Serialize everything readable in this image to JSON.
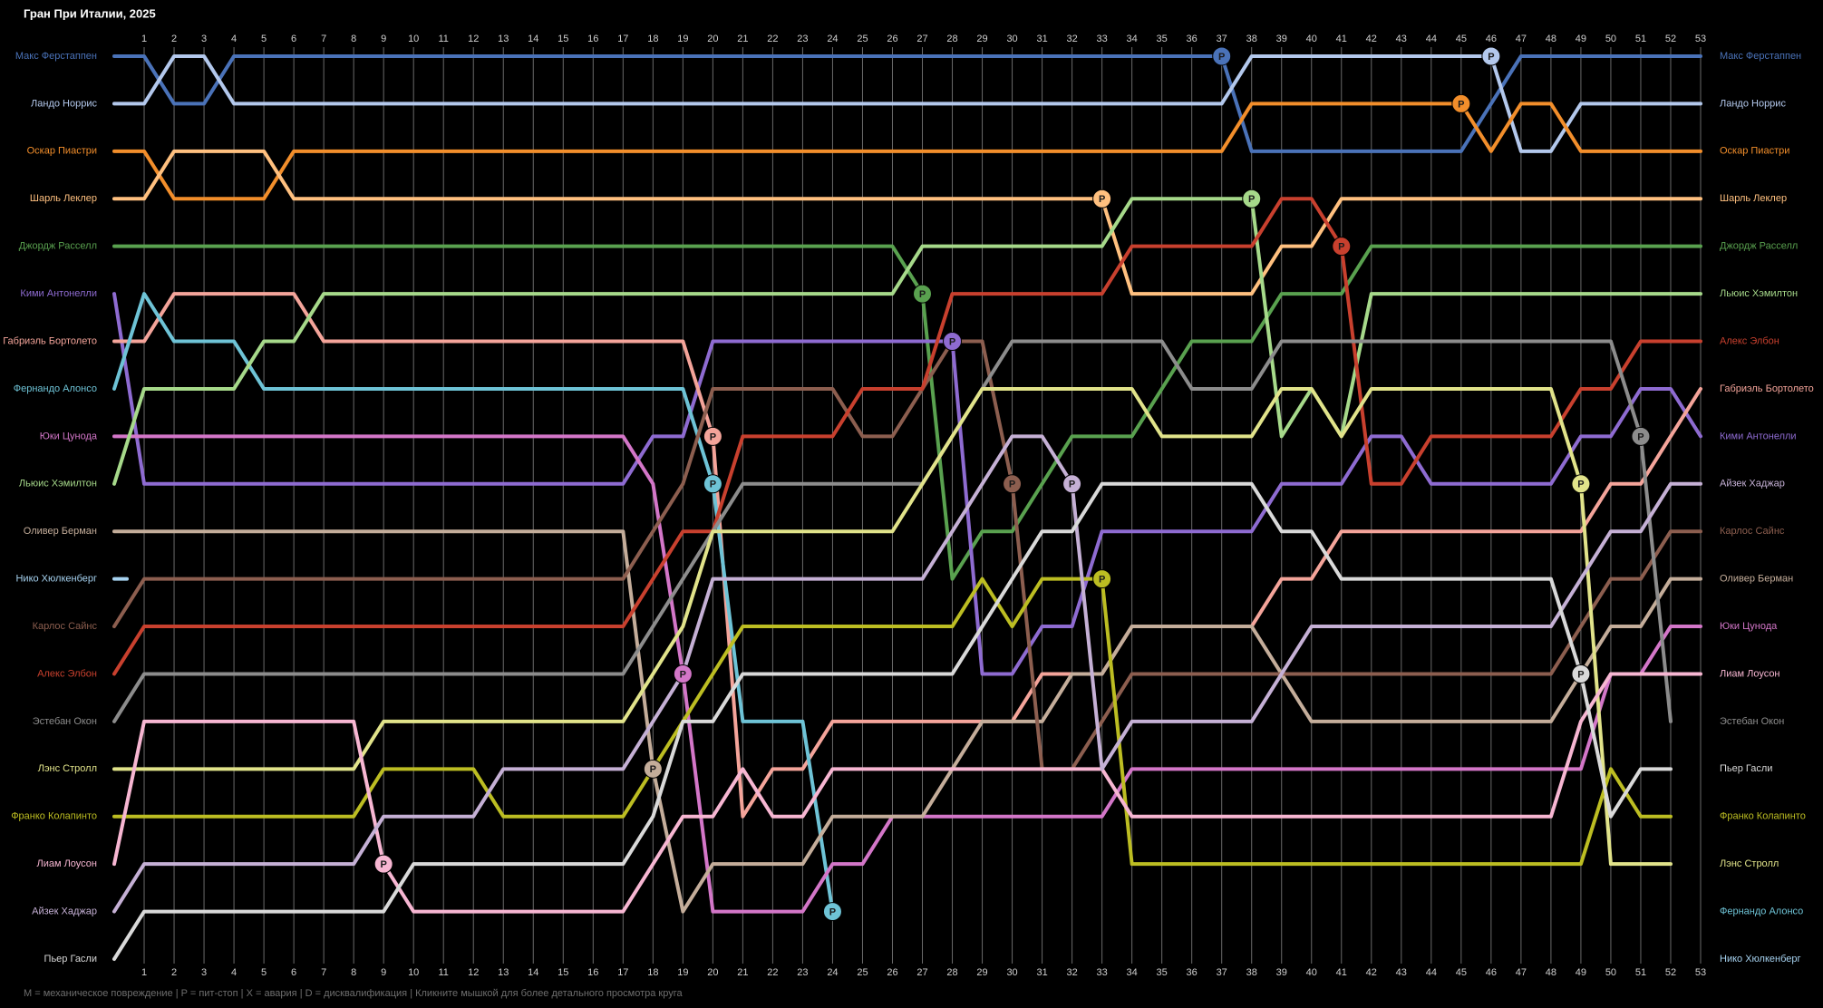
{
  "chart_data": {
    "type": "position-line",
    "title": "Гран При Италии, 2025",
    "footnote": "M = механическое повреждение | P = пит-стоп | X = авария | D = дисквалификация | Кликните мышкой для более детального просмотра круга",
    "pit_label": "P",
    "x": [
      0,
      1,
      2,
      3,
      4,
      5,
      6,
      7,
      8,
      9,
      10,
      11,
      12,
      13,
      14,
      15,
      16,
      17,
      18,
      19,
      20,
      21,
      22,
      23,
      24,
      25,
      26,
      27,
      28,
      29,
      30,
      31,
      32,
      33,
      34,
      35,
      36,
      37,
      38,
      39,
      40,
      41,
      42,
      43,
      44,
      45,
      46,
      47,
      48,
      49,
      50,
      51,
      52,
      53
    ],
    "xlim": [
      0,
      53
    ],
    "xticks": [
      1,
      2,
      3,
      4,
      5,
      6,
      7,
      8,
      9,
      10,
      11,
      12,
      13,
      14,
      15,
      16,
      17,
      18,
      19,
      20,
      21,
      22,
      23,
      24,
      25,
      26,
      27,
      28,
      29,
      30,
      31,
      32,
      33,
      34,
      35,
      36,
      37,
      38,
      39,
      40,
      41,
      42,
      43,
      44,
      45,
      46,
      47,
      48,
      49,
      50,
      51,
      52,
      53
    ],
    "ylim": [
      1,
      20
    ],
    "y_inverted": true,
    "grid": true,
    "series": [
      {
        "name": "Макс Ферстаппен",
        "color": "#4a72b8",
        "pits": [
          37
        ],
        "values": [
          1,
          1,
          2,
          2,
          1,
          1,
          1,
          1,
          1,
          1,
          1,
          1,
          1,
          1,
          1,
          1,
          1,
          1,
          1,
          1,
          1,
          1,
          1,
          1,
          1,
          1,
          1,
          1,
          1,
          1,
          1,
          1,
          1,
          1,
          1,
          1,
          1,
          1,
          3,
          3,
          3,
          3,
          3,
          3,
          3,
          3,
          2,
          1,
          1,
          1,
          1,
          1,
          1,
          1
        ]
      },
      {
        "name": "Ландо Норрис",
        "color": "#b3c8ec",
        "pits": [
          46
        ],
        "values": [
          2,
          2,
          1,
          1,
          2,
          2,
          2,
          2,
          2,
          2,
          2,
          2,
          2,
          2,
          2,
          2,
          2,
          2,
          2,
          2,
          2,
          2,
          2,
          2,
          2,
          2,
          2,
          2,
          2,
          2,
          2,
          2,
          2,
          2,
          2,
          2,
          2,
          2,
          1,
          1,
          1,
          1,
          1,
          1,
          1,
          1,
          1,
          3,
          3,
          2,
          2,
          2,
          2,
          2
        ]
      },
      {
        "name": "Оскар Пиастри",
        "color": "#f28e2b",
        "pits": [
          45
        ],
        "values": [
          3,
          3,
          4,
          4,
          4,
          4,
          3,
          3,
          3,
          3,
          3,
          3,
          3,
          3,
          3,
          3,
          3,
          3,
          3,
          3,
          3,
          3,
          3,
          3,
          3,
          3,
          3,
          3,
          3,
          3,
          3,
          3,
          3,
          3,
          3,
          3,
          3,
          3,
          2,
          2,
          2,
          2,
          2,
          2,
          2,
          2,
          3,
          2,
          2,
          3,
          3,
          3,
          3,
          3
        ]
      },
      {
        "name": "Шарль Леклер",
        "color": "#ffc07f",
        "pits": [
          33
        ],
        "values": [
          4,
          4,
          3,
          3,
          3,
          3,
          4,
          4,
          4,
          4,
          4,
          4,
          4,
          4,
          4,
          4,
          4,
          4,
          4,
          4,
          4,
          4,
          4,
          4,
          4,
          4,
          4,
          4,
          4,
          4,
          4,
          4,
          4,
          4,
          6,
          6,
          6,
          6,
          6,
          5,
          5,
          4,
          4,
          4,
          4,
          4,
          4,
          4,
          4,
          4,
          4,
          4,
          4,
          4
        ]
      },
      {
        "name": "Джордж Расселл",
        "color": "#59a14f",
        "pits": [
          27
        ],
        "values": [
          5,
          5,
          5,
          5,
          5,
          5,
          5,
          5,
          5,
          5,
          5,
          5,
          5,
          5,
          5,
          5,
          5,
          5,
          5,
          5,
          5,
          5,
          5,
          5,
          5,
          5,
          5,
          6,
          12,
          11,
          11,
          10,
          9,
          9,
          9,
          8,
          7,
          7,
          7,
          6,
          6,
          6,
          5,
          5,
          5,
          5,
          5,
          5,
          5,
          5,
          5,
          5,
          5,
          5
        ]
      },
      {
        "name": "Кими Антонелли",
        "color": "#8e6bd1",
        "pits": [
          28
        ],
        "values": [
          6,
          10,
          10,
          10,
          10,
          10,
          10,
          10,
          10,
          10,
          10,
          10,
          10,
          10,
          10,
          10,
          10,
          10,
          9,
          9,
          7,
          7,
          7,
          7,
          7,
          7,
          7,
          7,
          7,
          14,
          14,
          13,
          13,
          11,
          11,
          11,
          11,
          11,
          11,
          10,
          10,
          10,
          9,
          9,
          10,
          10,
          10,
          10,
          10,
          9,
          9,
          8,
          8,
          9
        ]
      },
      {
        "name": "Габриэль Бортолето",
        "color": "#f4a49a",
        "pits": [
          20
        ],
        "values": [
          7,
          7,
          6,
          6,
          6,
          6,
          6,
          7,
          7,
          7,
          7,
          7,
          7,
          7,
          7,
          7,
          7,
          7,
          7,
          7,
          9,
          17,
          16,
          16,
          15,
          15,
          15,
          15,
          15,
          15,
          15,
          14,
          14,
          14,
          13,
          13,
          13,
          13,
          13,
          12,
          12,
          11,
          11,
          11,
          11,
          11,
          11,
          11,
          11,
          11,
          10,
          10,
          9,
          8
        ]
      },
      {
        "name": "Фернандо Алонсо",
        "color": "#6ec3d6",
        "pits": [
          20,
          24
        ],
        "values": [
          8,
          6,
          7,
          7,
          7,
          8,
          8,
          8,
          8,
          8,
          8,
          8,
          8,
          8,
          8,
          8,
          8,
          8,
          8,
          8,
          10,
          15,
          15,
          15,
          19,
          null,
          null,
          null,
          null,
          null,
          null,
          null,
          null,
          null,
          null,
          null,
          null,
          null,
          null,
          null,
          null,
          null,
          null,
          null,
          null,
          null,
          null,
          null,
          null,
          null,
          null,
          null,
          null,
          null
        ]
      },
      {
        "name": "Юки Цунода",
        "color": "#d376c8",
        "pits": [
          19
        ],
        "values": [
          9,
          9,
          9,
          9,
          9,
          9,
          9,
          9,
          9,
          9,
          9,
          9,
          9,
          9,
          9,
          9,
          9,
          9,
          10,
          14,
          19,
          19,
          19,
          19,
          18,
          18,
          17,
          17,
          17,
          17,
          17,
          17,
          17,
          17,
          16,
          16,
          16,
          16,
          16,
          16,
          16,
          16,
          16,
          16,
          16,
          16,
          16,
          16,
          16,
          16,
          14,
          14,
          13,
          13
        ]
      },
      {
        "name": "Льюис Хэмилтон",
        "color": "#a6d98a",
        "pits": [
          38
        ],
        "values": [
          10,
          8,
          8,
          8,
          8,
          7,
          7,
          6,
          6,
          6,
          6,
          6,
          6,
          6,
          6,
          6,
          6,
          6,
          6,
          6,
          6,
          6,
          6,
          6,
          6,
          6,
          6,
          5,
          5,
          5,
          5,
          5,
          5,
          5,
          4,
          4,
          4,
          4,
          4,
          9,
          8,
          9,
          6,
          6,
          6,
          6,
          6,
          6,
          6,
          6,
          6,
          6,
          6,
          6
        ]
      },
      {
        "name": "Оливер Берман",
        "color": "#c4ad9a",
        "pits": [
          18
        ],
        "values": [
          11,
          11,
          11,
          11,
          11,
          11,
          11,
          11,
          11,
          11,
          11,
          11,
          11,
          11,
          11,
          11,
          11,
          11,
          16,
          19,
          18,
          18,
          18,
          18,
          17,
          17,
          17,
          17,
          16,
          15,
          15,
          15,
          14,
          14,
          13,
          13,
          13,
          13,
          13,
          14,
          15,
          15,
          15,
          15,
          15,
          15,
          15,
          15,
          15,
          14,
          13,
          13,
          12,
          12
        ]
      },
      {
        "name": "Нико Хюлкенберг",
        "color": "#a6d2f0",
        "pits": [],
        "values": [
          12,
          null,
          null,
          null,
          null,
          null,
          null,
          null,
          null,
          null,
          null,
          null,
          null,
          null,
          null,
          null,
          null,
          null,
          null,
          null,
          null,
          null,
          null,
          null,
          null,
          null,
          null,
          null,
          null,
          null,
          null,
          null,
          null,
          null,
          null,
          null,
          null,
          null,
          null,
          null,
          null,
          null,
          null,
          null,
          null,
          null,
          null,
          null,
          null,
          null,
          null,
          null,
          null,
          null
        ]
      },
      {
        "name": "Карлос Сайнс",
        "color": "#8c5e4f",
        "pits": [
          30
        ],
        "values": [
          13,
          12,
          12,
          12,
          12,
          12,
          12,
          12,
          12,
          12,
          12,
          12,
          12,
          12,
          12,
          12,
          12,
          12,
          11,
          10,
          8,
          8,
          8,
          8,
          8,
          9,
          9,
          8,
          7,
          7,
          10,
          16,
          16,
          15,
          14,
          14,
          14,
          14,
          14,
          14,
          14,
          14,
          14,
          14,
          14,
          14,
          14,
          14,
          14,
          13,
          12,
          12,
          11,
          11
        ]
      },
      {
        "name": "Алекс Элбон",
        "color": "#c8402e",
        "pits": [
          41
        ],
        "values": [
          14,
          13,
          13,
          13,
          13,
          13,
          13,
          13,
          13,
          13,
          13,
          13,
          13,
          13,
          13,
          13,
          13,
          13,
          12,
          11,
          11,
          9,
          9,
          9,
          9,
          8,
          8,
          8,
          6,
          6,
          6,
          6,
          6,
          6,
          5,
          5,
          5,
          5,
          5,
          4,
          4,
          5,
          10,
          10,
          9,
          9,
          9,
          9,
          9,
          8,
          8,
          7,
          7,
          7
        ]
      },
      {
        "name": "Эстебан Окон",
        "color": "#8c8c8c",
        "pits": [
          51
        ],
        "values": [
          15,
          14,
          14,
          14,
          14,
          14,
          14,
          14,
          14,
          14,
          14,
          14,
          14,
          14,
          14,
          14,
          14,
          14,
          13,
          12,
          11,
          10,
          10,
          10,
          10,
          10,
          10,
          10,
          9,
          8,
          7,
          7,
          7,
          7,
          7,
          7,
          8,
          8,
          8,
          7,
          7,
          7,
          7,
          7,
          7,
          7,
          7,
          7,
          7,
          7,
          7,
          9,
          15,
          null
        ]
      },
      {
        "name": "Лэнс Стролл",
        "color": "#e1e38a",
        "pits": [
          49
        ],
        "values": [
          16,
          16,
          16,
          16,
          16,
          16,
          16,
          16,
          16,
          15,
          15,
          15,
          15,
          15,
          15,
          15,
          15,
          15,
          14,
          13,
          11,
          11,
          11,
          11,
          11,
          11,
          11,
          10,
          9,
          8,
          8,
          8,
          8,
          8,
          8,
          9,
          9,
          9,
          9,
          8,
          8,
          9,
          8,
          8,
          8,
          8,
          8,
          8,
          8,
          10,
          18,
          18,
          18,
          null
        ]
      },
      {
        "name": "Франко Колапинто",
        "color": "#bcbd22",
        "pits": [
          33
        ],
        "values": [
          17,
          17,
          17,
          17,
          17,
          17,
          17,
          17,
          17,
          16,
          16,
          16,
          16,
          17,
          17,
          17,
          17,
          17,
          16,
          15,
          14,
          13,
          13,
          13,
          13,
          13,
          13,
          13,
          13,
          12,
          13,
          12,
          12,
          12,
          18,
          18,
          18,
          18,
          18,
          18,
          18,
          18,
          18,
          18,
          18,
          18,
          18,
          18,
          18,
          18,
          16,
          17,
          17,
          null
        ]
      },
      {
        "name": "Лиам Лоусон",
        "color": "#f7b6d2",
        "pits": [
          9
        ],
        "values": [
          18,
          15,
          15,
          15,
          15,
          15,
          15,
          15,
          15,
          18,
          19,
          19,
          19,
          19,
          19,
          19,
          19,
          19,
          18,
          17,
          17,
          16,
          17,
          17,
          16,
          16,
          16,
          16,
          16,
          16,
          16,
          16,
          16,
          16,
          17,
          17,
          17,
          17,
          17,
          17,
          17,
          17,
          17,
          17,
          17,
          17,
          17,
          17,
          17,
          15,
          14,
          14,
          14,
          14
        ]
      },
      {
        "name": "Айзек Хаджар",
        "color": "#c5b0d5",
        "pits": [
          32
        ],
        "values": [
          19,
          18,
          18,
          18,
          18,
          18,
          18,
          18,
          18,
          17,
          17,
          17,
          17,
          16,
          16,
          16,
          16,
          16,
          15,
          14,
          12,
          12,
          12,
          12,
          12,
          12,
          12,
          12,
          11,
          10,
          9,
          9,
          10,
          16,
          15,
          15,
          15,
          15,
          15,
          14,
          13,
          13,
          13,
          13,
          13,
          13,
          13,
          13,
          13,
          12,
          11,
          11,
          10,
          10
        ]
      },
      {
        "name": "Пьер Гасли",
        "color": "#d9d9d9",
        "pits": [
          49
        ],
        "values": [
          20,
          19,
          19,
          19,
          19,
          19,
          19,
          19,
          19,
          19,
          18,
          18,
          18,
          18,
          18,
          18,
          18,
          18,
          17,
          15,
          15,
          14,
          14,
          14,
          14,
          14,
          14,
          14,
          14,
          13,
          12,
          11,
          11,
          10,
          10,
          10,
          10,
          10,
          10,
          11,
          11,
          12,
          12,
          12,
          12,
          12,
          12,
          12,
          12,
          14,
          17,
          16,
          16,
          null
        ]
      }
    ]
  }
}
